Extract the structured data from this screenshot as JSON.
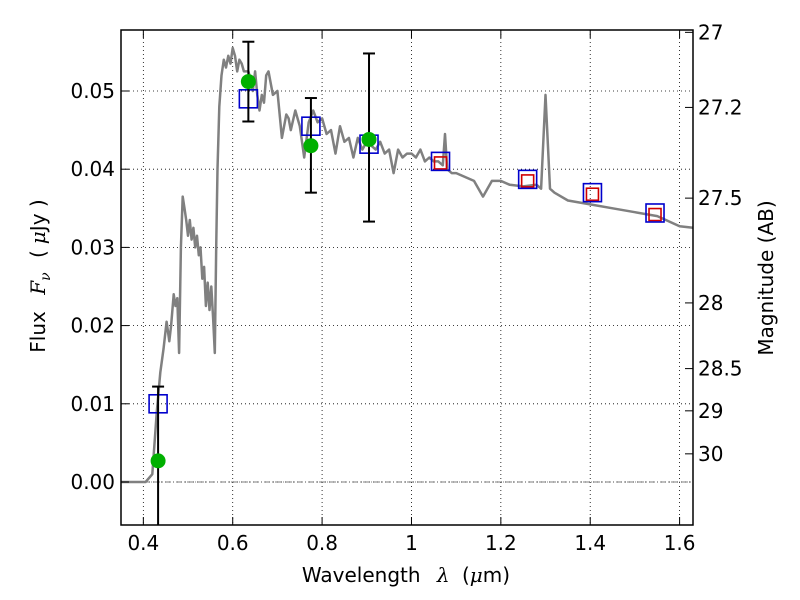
{
  "chart_data": {
    "type": "line",
    "xlabel": {
      "text": "Wavelength",
      "symbol": "λ",
      "unit_open": "(",
      "unit": "μ",
      "unit_rest": "m)"
    },
    "ylabel": {
      "text": "Flux",
      "symbol_F": "F",
      "symbol_sub": "ν",
      "unit_open": "(",
      "unit": "μ",
      "unit_rest": "Jy )"
    },
    "y2label": "Magnitude (AB)",
    "xlim": [
      0.35,
      1.63
    ],
    "ylim": [
      -0.0055,
      0.0578
    ],
    "grid": true,
    "x_ticks": [
      0.4,
      0.6,
      0.8,
      1.0,
      1.2,
      1.4,
      1.6
    ],
    "x_tick_labels": [
      "0.4",
      "0.6",
      "0.8",
      "1",
      "1.2",
      "1.4",
      "1.6"
    ],
    "y_ticks": [
      0.0,
      0.01,
      0.02,
      0.03,
      0.04,
      0.05
    ],
    "y_tick_labels": [
      "0.00",
      "0.01",
      "0.02",
      "0.03",
      "0.04",
      "0.05"
    ],
    "y2_ticks": [
      {
        "label": "27",
        "flux": 0.0575
      },
      {
        "label": "27.2",
        "flux": 0.0479
      },
      {
        "label": "27.5",
        "flux": 0.0363
      },
      {
        "label": "28",
        "flux": 0.0229
      },
      {
        "label": "28.5",
        "flux": 0.0145
      },
      {
        "label": "29",
        "flux": 0.0091
      },
      {
        "label": "30",
        "flux": 0.0036
      }
    ],
    "series": [
      {
        "type": "line",
        "color": "#808080",
        "x": [
          0.35,
          0.405,
          0.42,
          0.43,
          0.438,
          0.445,
          0.452,
          0.458,
          0.462,
          0.468,
          0.472,
          0.476,
          0.48,
          0.484,
          0.488,
          0.492,
          0.496,
          0.5,
          0.504,
          0.508,
          0.512,
          0.516,
          0.52,
          0.524,
          0.528,
          0.532,
          0.536,
          0.54,
          0.544,
          0.548,
          0.552,
          0.556,
          0.56,
          0.563,
          0.566,
          0.57,
          0.575,
          0.58,
          0.585,
          0.59,
          0.595,
          0.6,
          0.605,
          0.61,
          0.615,
          0.62,
          0.625,
          0.63,
          0.635,
          0.64,
          0.645,
          0.65,
          0.655,
          0.66,
          0.665,
          0.67,
          0.675,
          0.68,
          0.69,
          0.7,
          0.71,
          0.72,
          0.725,
          0.73,
          0.74,
          0.75,
          0.76,
          0.77,
          0.78,
          0.79,
          0.8,
          0.81,
          0.82,
          0.83,
          0.84,
          0.85,
          0.86,
          0.87,
          0.88,
          0.89,
          0.9,
          0.91,
          0.92,
          0.93,
          0.94,
          0.95,
          0.96,
          0.97,
          0.98,
          0.99,
          1.0,
          1.01,
          1.02,
          1.03,
          1.04,
          1.05,
          1.06,
          1.07,
          1.075,
          1.08,
          1.09,
          1.1,
          1.12,
          1.14,
          1.16,
          1.18,
          1.2,
          1.22,
          1.25,
          1.28,
          1.29,
          1.3,
          1.31,
          1.32,
          1.35,
          1.4,
          1.45,
          1.5,
          1.55,
          1.6,
          1.63
        ],
        "y": [
          0.0,
          0.0,
          0.001,
          0.009,
          0.014,
          0.017,
          0.0205,
          0.018,
          0.02,
          0.024,
          0.0225,
          0.0235,
          0.0165,
          0.03,
          0.0365,
          0.035,
          0.0335,
          0.0315,
          0.0335,
          0.031,
          0.0325,
          0.03,
          0.0315,
          0.029,
          0.03,
          0.026,
          0.0275,
          0.0225,
          0.0255,
          0.022,
          0.025,
          0.021,
          0.0165,
          0.03,
          0.04,
          0.048,
          0.052,
          0.054,
          0.053,
          0.0545,
          0.0535,
          0.0555,
          0.0545,
          0.0525,
          0.054,
          0.0535,
          0.0525,
          0.0525,
          0.0525,
          0.0515,
          0.05,
          0.0525,
          0.0495,
          0.0475,
          0.0495,
          0.0485,
          0.052,
          0.0525,
          0.0495,
          0.05,
          0.044,
          0.047,
          0.0465,
          0.045,
          0.0475,
          0.0455,
          0.0415,
          0.046,
          0.0475,
          0.046,
          0.0465,
          0.0445,
          0.045,
          0.042,
          0.0455,
          0.0435,
          0.044,
          0.0415,
          0.044,
          0.0425,
          0.0435,
          0.043,
          0.0425,
          0.0435,
          0.042,
          0.0425,
          0.0395,
          0.0425,
          0.0415,
          0.042,
          0.042,
          0.0415,
          0.0425,
          0.041,
          0.0415,
          0.041,
          0.041,
          0.0405,
          0.0445,
          0.04,
          0.0395,
          0.0395,
          0.039,
          0.0385,
          0.0365,
          0.0385,
          0.0385,
          0.038,
          0.0378,
          0.038,
          0.0375,
          0.0495,
          0.0375,
          0.037,
          0.036,
          0.0355,
          0.035,
          0.0345,
          0.034,
          0.0327,
          0.0325
        ]
      },
      {
        "type": "scatter",
        "marker": "square",
        "color": "#d00000",
        "x": [
          1.065,
          1.26,
          1.405,
          1.545
        ],
        "y": [
          0.0408,
          0.0385,
          0.0368,
          0.0342
        ]
      },
      {
        "type": "scatter",
        "marker": "square",
        "color": "#0000cc",
        "x": [
          0.433,
          0.635,
          0.775,
          0.905,
          1.065,
          1.26,
          1.405,
          1.545
        ],
        "y": [
          0.01,
          0.049,
          0.0455,
          0.0432,
          0.041,
          0.0387,
          0.037,
          0.0344
        ]
      },
      {
        "type": "errorbar",
        "color": "#00b000",
        "x": [
          0.433,
          0.635,
          0.775,
          0.905
        ],
        "y": [
          0.0027,
          0.0512,
          0.043,
          0.0438
        ],
        "yerr_low": [
          0.0085,
          0.0051,
          0.006,
          0.0105
        ],
        "yerr_high": [
          0.0095,
          0.0051,
          0.0061,
          0.011
        ]
      }
    ]
  }
}
